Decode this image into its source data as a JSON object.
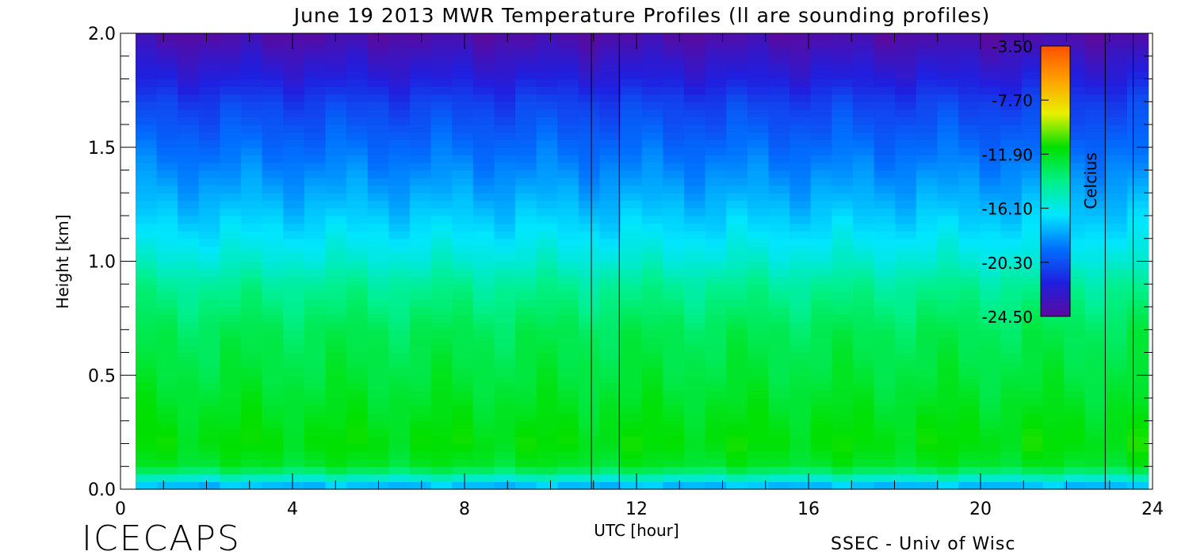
{
  "chart_data": {
    "type": "heatmap",
    "title": "June 19 2013 MWR Temperature Profiles (ll are sounding profiles)",
    "xlabel": "UTC [hour]",
    "ylabel": "Height [km]",
    "xlim": [
      0,
      24
    ],
    "ylim": [
      0,
      2
    ],
    "x_ticks": [
      0,
      4,
      8,
      12,
      16,
      20,
      24
    ],
    "x_tick_labels": [
      "0",
      "4",
      "8",
      "12",
      "16",
      "20",
      "24"
    ],
    "y_ticks": [
      0.0,
      0.5,
      1.0,
      1.5,
      2.0
    ],
    "y_tick_labels": [
      "0.0",
      "0.5",
      "1.0",
      "1.5",
      "2.0"
    ],
    "data_start_hour": 0.35,
    "data_end_hour": 23.9,
    "sounding_profile_hours": [
      10.95,
      11.6,
      22.9,
      23.55
    ],
    "colorbar": {
      "label": "Celcius",
      "ticks": [
        -3.5,
        -7.7,
        -11.9,
        -16.1,
        -20.3,
        -24.5
      ],
      "tick_labels": [
        "-3.50",
        "-7.70",
        "-11.90",
        "-16.10",
        "-20.30",
        "-24.50"
      ],
      "range": [
        -24.5,
        -3.5
      ],
      "colors": [
        "#5a0a9e",
        "#1f1fe0",
        "#0070ff",
        "#00e6ff",
        "#00f08a",
        "#00e000",
        "#e8f000",
        "#ffa000",
        "#ff5000"
      ]
    },
    "temperature_profile": {
      "heights_km": [
        0.0,
        0.1,
        0.2,
        0.3,
        0.5,
        0.7,
        0.9,
        1.0,
        1.1,
        1.3,
        1.5,
        1.7,
        1.8,
        1.9,
        2.0
      ],
      "temperature_c": [
        -18.5,
        -12.2,
        -11.5,
        -11.8,
        -12.5,
        -13.0,
        -14.3,
        -15.6,
        -16.5,
        -18.0,
        -19.4,
        -20.8,
        -22.0,
        -23.0,
        -24.2
      ]
    }
  },
  "footer": {
    "left": "ICECAPS",
    "right": "SSEC - Univ of Wisc"
  }
}
